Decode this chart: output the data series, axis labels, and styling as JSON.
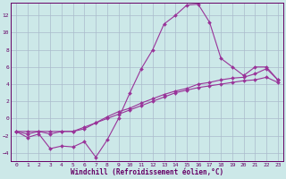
{
  "xlabel": "Windchill (Refroidissement éolien,°C)",
  "background_color": "#cce8e8",
  "grid_color": "#aabbcc",
  "line_color": "#993399",
  "xlim": [
    -0.5,
    23.5
  ],
  "ylim": [
    -5.0,
    13.5
  ],
  "xticks": [
    0,
    1,
    2,
    3,
    4,
    5,
    6,
    7,
    8,
    9,
    10,
    11,
    12,
    13,
    14,
    15,
    16,
    17,
    18,
    19,
    20,
    21,
    22,
    23
  ],
  "yticks": [
    -4,
    -2,
    0,
    2,
    4,
    6,
    8,
    10,
    12
  ],
  "curve1_x": [
    0,
    1,
    2,
    3,
    4,
    5,
    6,
    7,
    8,
    9,
    10,
    11,
    12,
    13,
    14,
    15,
    16,
    17,
    18,
    19,
    20,
    21,
    22,
    23
  ],
  "curve1_y": [
    -1.5,
    -2.2,
    -1.8,
    -3.5,
    -3.2,
    -3.3,
    -2.7,
    -4.5,
    -2.5,
    0.0,
    3.0,
    5.8,
    8.0,
    11.0,
    12.0,
    13.2,
    13.3,
    11.2,
    7.0,
    6.0,
    5.0,
    6.0,
    6.0,
    4.5
  ],
  "curve2_x": [
    0,
    1,
    2,
    3,
    4,
    5,
    6,
    7,
    8,
    9,
    10,
    11,
    12,
    13,
    14,
    15,
    16,
    17,
    18,
    19,
    20,
    21,
    22,
    23
  ],
  "curve2_y": [
    -1.5,
    -1.8,
    -1.5,
    -1.8,
    -1.5,
    -1.5,
    -1.2,
    -0.5,
    0.2,
    0.8,
    1.2,
    1.8,
    2.3,
    2.8,
    3.2,
    3.5,
    4.0,
    4.2,
    4.5,
    4.7,
    4.8,
    5.2,
    5.8,
    4.5
  ],
  "curve3_x": [
    0,
    1,
    2,
    3,
    4,
    5,
    6,
    7,
    8,
    9,
    10,
    11,
    12,
    13,
    14,
    15,
    16,
    17,
    18,
    19,
    20,
    21,
    22,
    23
  ],
  "curve3_y": [
    -1.5,
    -1.5,
    -1.5,
    -1.5,
    -1.5,
    -1.5,
    -1.0,
    -0.5,
    0.0,
    0.5,
    1.0,
    1.5,
    2.0,
    2.5,
    3.0,
    3.3,
    3.6,
    3.8,
    4.0,
    4.2,
    4.4,
    4.5,
    4.8,
    4.2
  ]
}
